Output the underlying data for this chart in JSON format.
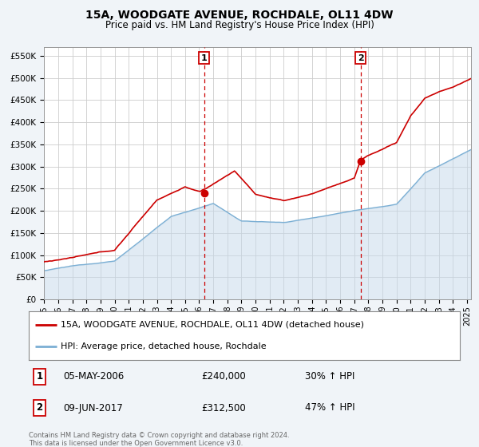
{
  "title": "15A, WOODGATE AVENUE, ROCHDALE, OL11 4DW",
  "subtitle": "Price paid vs. HM Land Registry's House Price Index (HPI)",
  "ylabel_ticks": [
    "£0",
    "£50K",
    "£100K",
    "£150K",
    "£200K",
    "£250K",
    "£300K",
    "£350K",
    "£400K",
    "£450K",
    "£500K",
    "£550K"
  ],
  "ytick_values": [
    0,
    50000,
    100000,
    150000,
    200000,
    250000,
    300000,
    350000,
    400000,
    450000,
    500000,
    550000
  ],
  "ylim": [
    0,
    570000
  ],
  "xlim_start": 1995.0,
  "xlim_end": 2025.3,
  "red_line_color": "#cc0000",
  "blue_line_color": "#7bafd4",
  "blue_fill_color": "#c5d9ea",
  "marker1_x": 2006.35,
  "marker1_y": 240000,
  "marker2_x": 2017.44,
  "marker2_y": 312500,
  "marker_color": "#cc0000",
  "marker_size": 6,
  "vline1_x": 2006.35,
  "vline2_x": 2017.44,
  "vline_color": "#cc0000",
  "legend_label_red": "15A, WOODGATE AVENUE, ROCHDALE, OL11 4DW (detached house)",
  "legend_label_blue": "HPI: Average price, detached house, Rochdale",
  "note1_label": "1",
  "note1_date": "05-MAY-2006",
  "note1_price": "£240,000",
  "note1_hpi": "30% ↑ HPI",
  "note2_label": "2",
  "note2_date": "09-JUN-2017",
  "note2_price": "£312,500",
  "note2_hpi": "47% ↑ HPI",
  "footer": "Contains HM Land Registry data © Crown copyright and database right 2024.\nThis data is licensed under the Open Government Licence v3.0.",
  "background_color": "#f0f4f8",
  "plot_bg_color": "#ffffff",
  "grid_color": "#cccccc",
  "title_fontsize": 10,
  "subtitle_fontsize": 8.5
}
